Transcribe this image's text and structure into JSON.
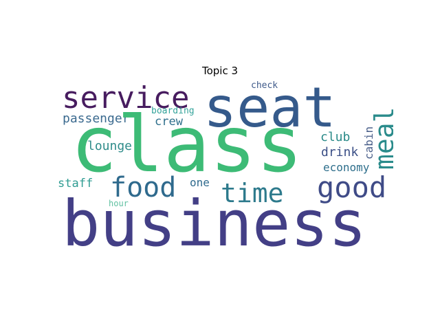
{
  "figure": {
    "title": "Topic 3"
  },
  "wordcloud": {
    "words": {
      "business": {
        "text": "business",
        "color": "#433f86"
      },
      "class": {
        "text": "class",
        "color": "#3dbb76"
      },
      "seat": {
        "text": "seat",
        "color": "#355a8b"
      },
      "service": {
        "text": "service",
        "color": "#471c5f"
      },
      "meal": {
        "text": "meal",
        "color": "#2a8b8b"
      },
      "food": {
        "text": "food",
        "color": "#2f6a8d"
      },
      "time": {
        "text": "time",
        "color": "#2d7a8c"
      },
      "good": {
        "text": "good",
        "color": "#3f4b87"
      },
      "passenger": {
        "text": "passenger",
        "color": "#3b6a8f"
      },
      "crew": {
        "text": "crew",
        "color": "#2f6f8c"
      },
      "boarding": {
        "text": "boarding",
        "color": "#33a39a"
      },
      "check": {
        "text": "check",
        "color": "#3f5a8a"
      },
      "lounge": {
        "text": "lounge",
        "color": "#2f8c8a"
      },
      "club": {
        "text": "club",
        "color": "#2a8a88"
      },
      "drink": {
        "text": "drink",
        "color": "#3b4f86"
      },
      "cabin": {
        "text": "cabin",
        "color": "#4a5f8a"
      },
      "economy": {
        "text": "economy",
        "color": "#2f6f8c"
      },
      "staff": {
        "text": "staff",
        "color": "#2f9c92"
      },
      "one": {
        "text": "one",
        "color": "#2f6a8d"
      },
      "hour": {
        "text": "hour",
        "color": "#5fc0a0"
      }
    }
  }
}
